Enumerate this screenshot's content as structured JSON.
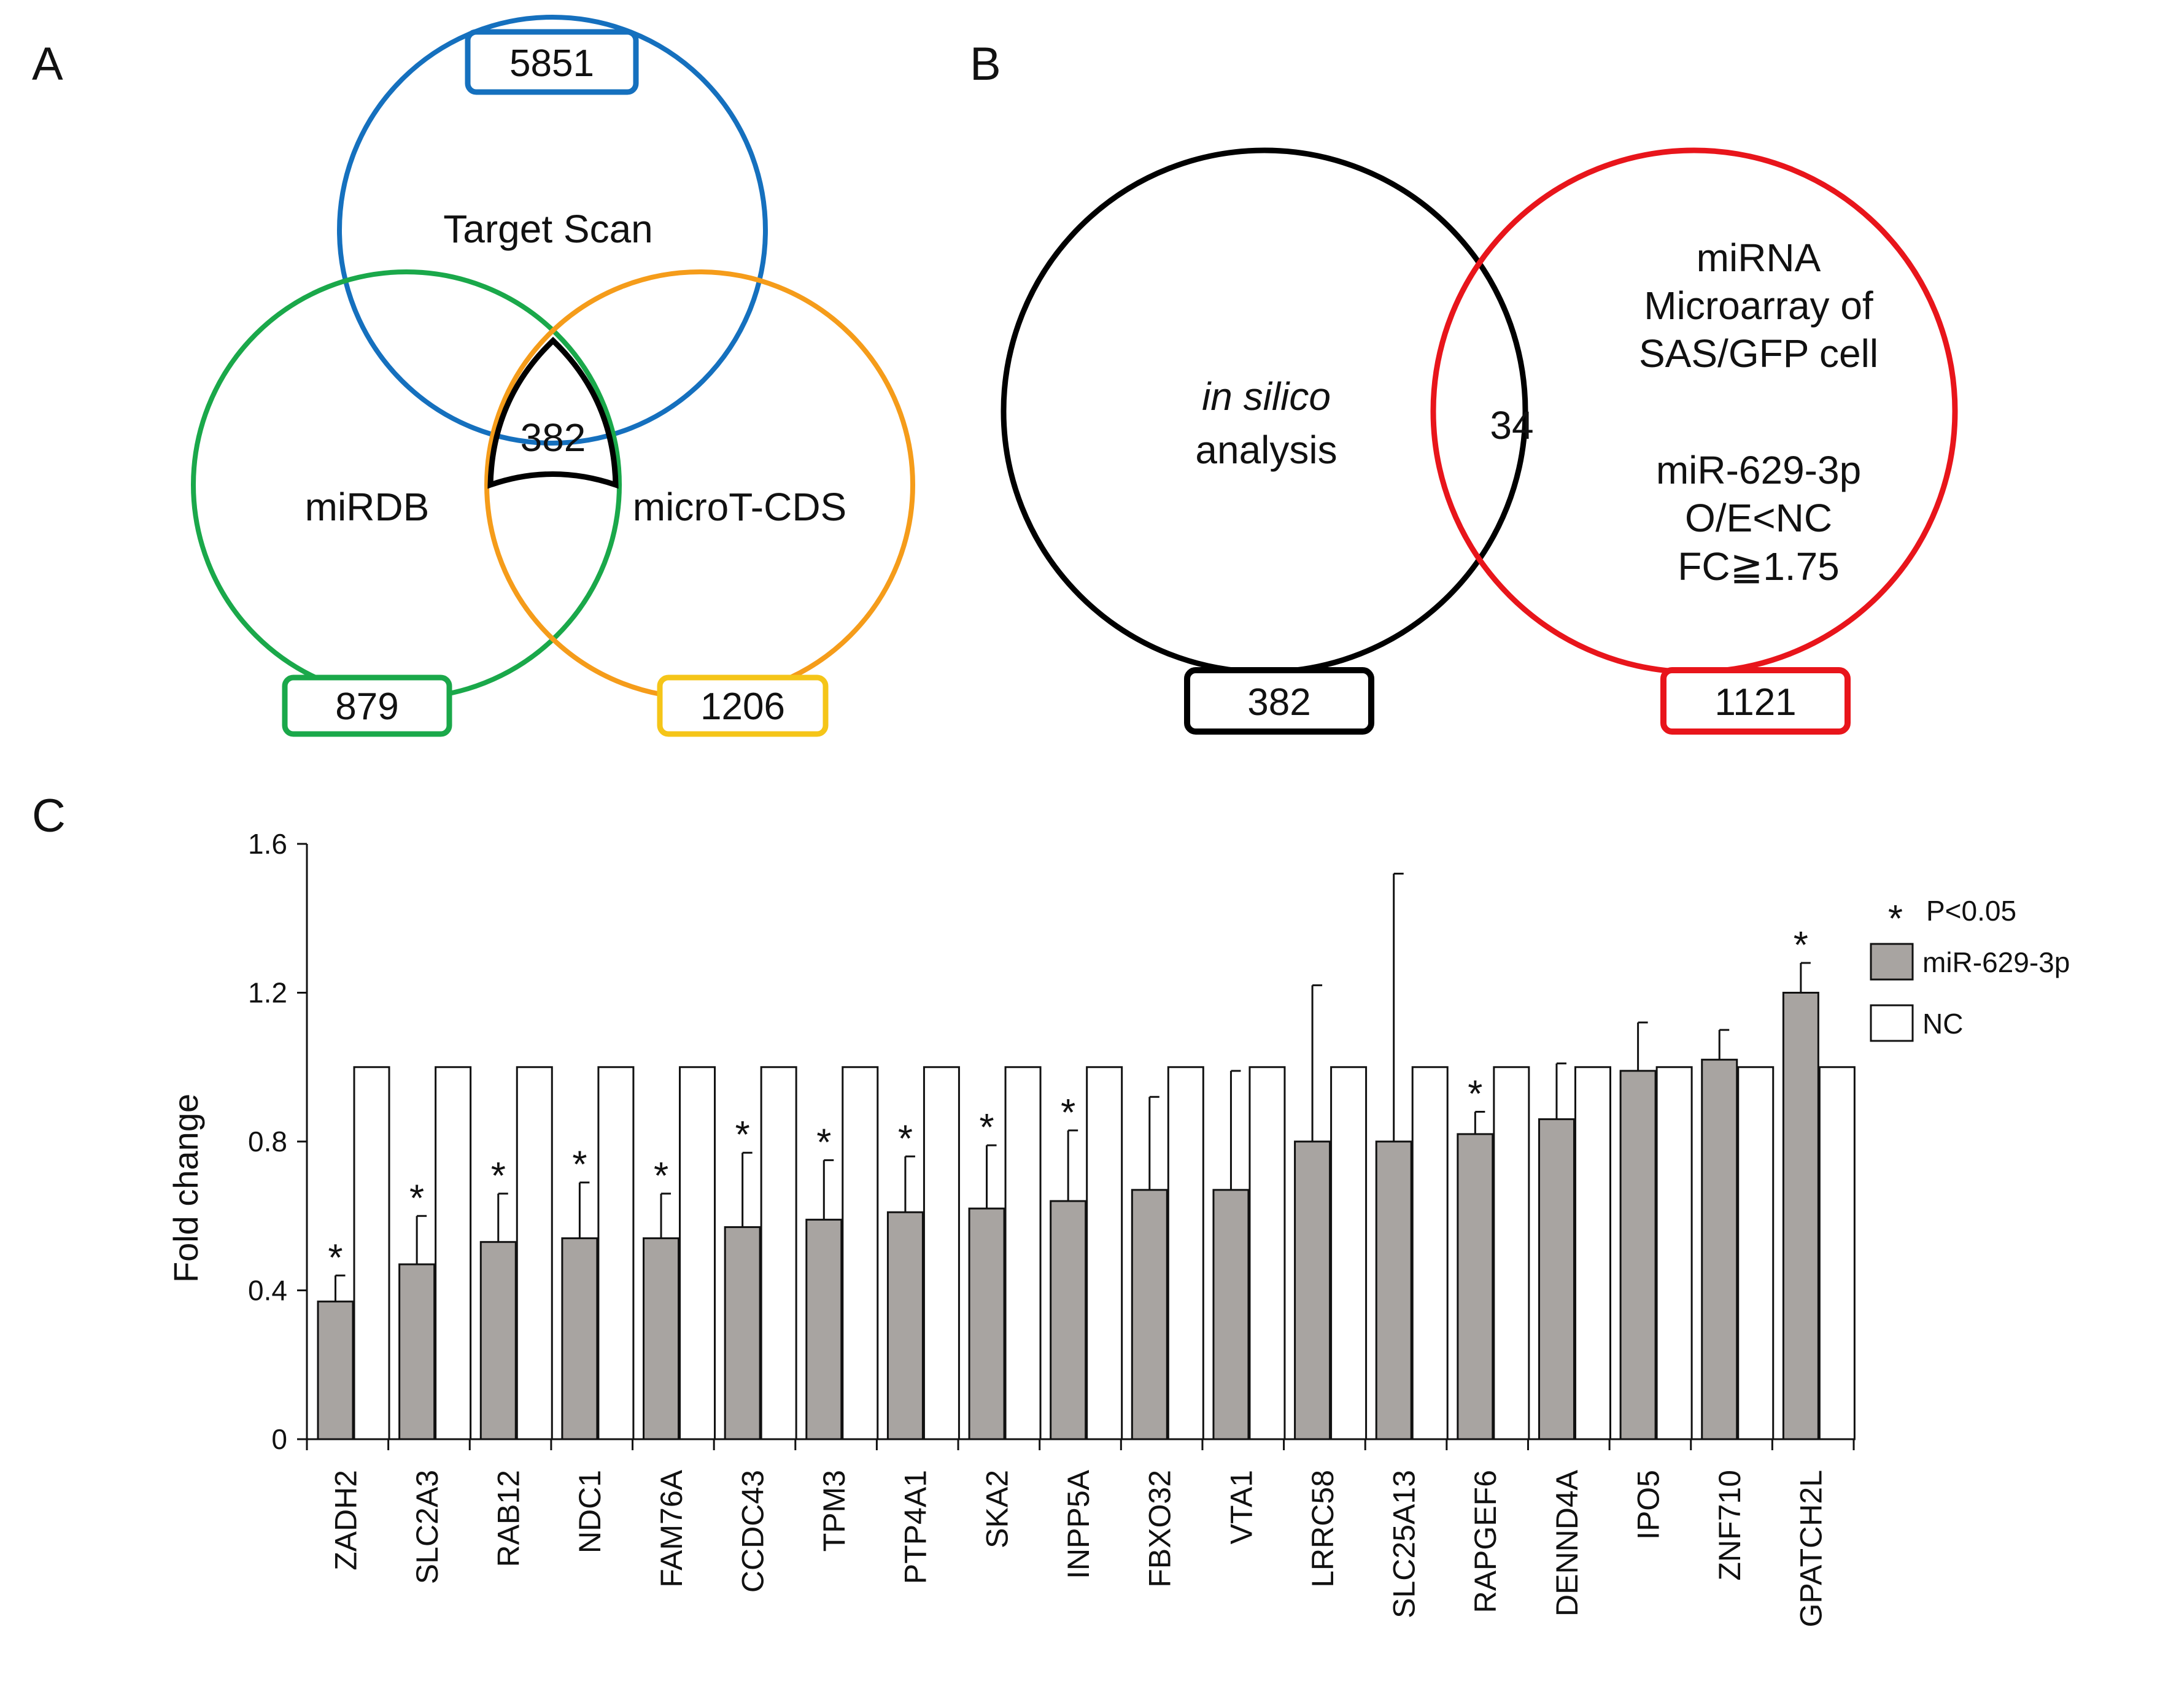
{
  "colors": {
    "targetscan": "#1570be",
    "mirdb": "#1aa84a",
    "microt": "#f59c1a",
    "microt_box": "#f5c518",
    "insilico": "#000000",
    "microarray": "#e8151b",
    "mir_bar": "#a8a4a1",
    "nc_bar": "#ffffff"
  },
  "panelA": {
    "letter": "A",
    "targetscan": {
      "label": "Target Scan",
      "count": "5851"
    },
    "mirdb": {
      "label": "miRDB",
      "count": "879"
    },
    "microt": {
      "label": "microT-CDS",
      "count": "1206"
    },
    "intersection": "382"
  },
  "panelB": {
    "letter": "B",
    "left": {
      "label_italic": "in silico",
      "label_line2": "analysis",
      "count": "382"
    },
    "right": {
      "lines": [
        "miRNA",
        "Microarray of",
        "SAS/GFP cell",
        "",
        "miR-629-3p",
        "O/E<NC",
        "FC≧1.75"
      ],
      "count": "1121"
    },
    "intersection": "34"
  },
  "panelC": {
    "letter": "C",
    "legend": {
      "significance": "P<0.05",
      "star": "*"
    }
  },
  "chart_data": {
    "type": "bar",
    "ylabel": "Fold change",
    "ylim": [
      0,
      1.6
    ],
    "yticks": [
      "0",
      "0.4",
      "0.8",
      "1.2",
      "1.6"
    ],
    "categories": [
      "ZADH2",
      "SLC2A3",
      "RAB12",
      "NDC1",
      "FAM76A",
      "CCDC43",
      "TPM3",
      "PTP4A1",
      "SKA2",
      "INPP5A",
      "FBXO32",
      "VTA1",
      "LRRC58",
      "SLC25A13",
      "RAPGEF6",
      "DENND4A",
      "IPO5",
      "ZNF710",
      "GPATCH2L"
    ],
    "series": [
      {
        "name": "miR-629-3p",
        "values": [
          0.37,
          0.47,
          0.53,
          0.54,
          0.54,
          0.57,
          0.59,
          0.61,
          0.62,
          0.64,
          0.67,
          0.67,
          0.8,
          0.8,
          0.82,
          0.86,
          0.99,
          1.02,
          1.2
        ],
        "error": [
          0.07,
          0.13,
          0.13,
          0.15,
          0.12,
          0.2,
          0.16,
          0.15,
          0.17,
          0.19,
          0.25,
          0.32,
          0.42,
          0.72,
          0.06,
          0.15,
          0.13,
          0.08,
          0.08
        ]
      },
      {
        "name": "NC",
        "values": [
          1,
          1,
          1,
          1,
          1,
          1,
          1,
          1,
          1,
          1,
          1,
          1,
          1,
          1,
          1,
          1,
          1,
          1,
          1
        ]
      }
    ],
    "significant": [
      true,
      true,
      true,
      true,
      true,
      true,
      true,
      true,
      true,
      true,
      false,
      false,
      false,
      false,
      true,
      false,
      false,
      false,
      true
    ]
  }
}
